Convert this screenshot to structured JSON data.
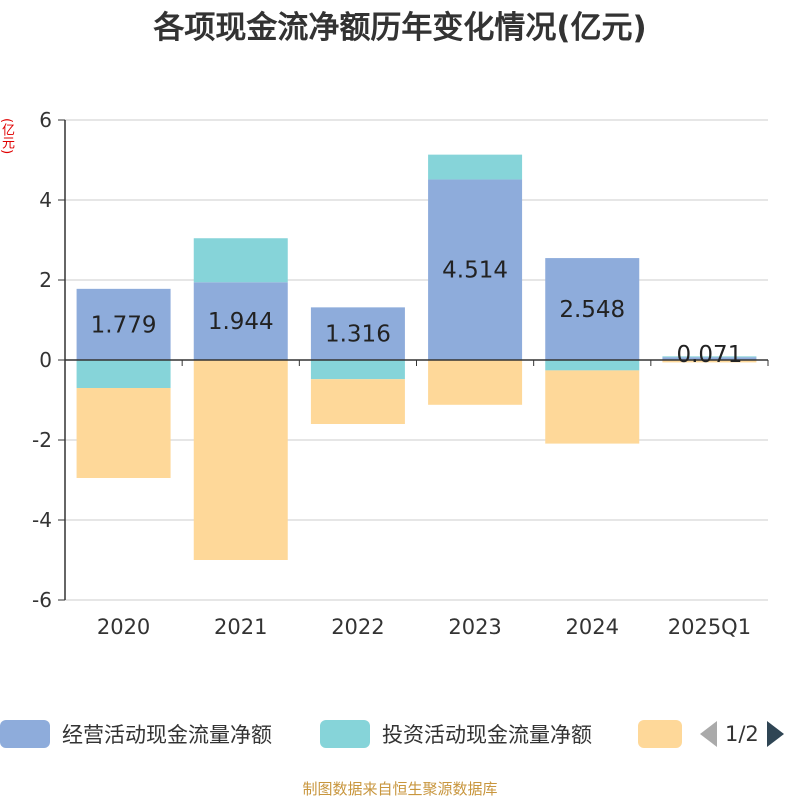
{
  "title": "各项现金流净额历年变化情况(亿元)",
  "y_unit": "(亿元)",
  "source": "制图数据来自恒生聚源数据库",
  "pager": {
    "text": "1/2"
  },
  "chart_data": {
    "type": "bar",
    "stacked": true,
    "categories": [
      "2020",
      "2021",
      "2022",
      "2023",
      "2024",
      "2025Q1"
    ],
    "ylim": [
      -6,
      6
    ],
    "yticks": [
      -6,
      -4,
      -2,
      0,
      2,
      4,
      6
    ],
    "grid": true,
    "legend_position": "bottom",
    "series": [
      {
        "name": "经营活动现金流量净额",
        "color": "#8eacdb",
        "values": [
          1.779,
          1.944,
          1.316,
          4.514,
          2.548,
          0.071
        ],
        "labels": [
          "1.779",
          "1.944",
          "1.316",
          "4.514",
          "2.548",
          "0.071"
        ]
      },
      {
        "name": "投资活动现金流量净额",
        "color": "#86d4d9",
        "values": [
          -0.7,
          1.1,
          -0.48,
          0.62,
          -0.26,
          0.02
        ]
      },
      {
        "name": "",
        "color": "#fed899",
        "values": [
          -2.25,
          -5.0,
          -1.12,
          -1.12,
          -1.83,
          -0.06
        ]
      }
    ]
  }
}
